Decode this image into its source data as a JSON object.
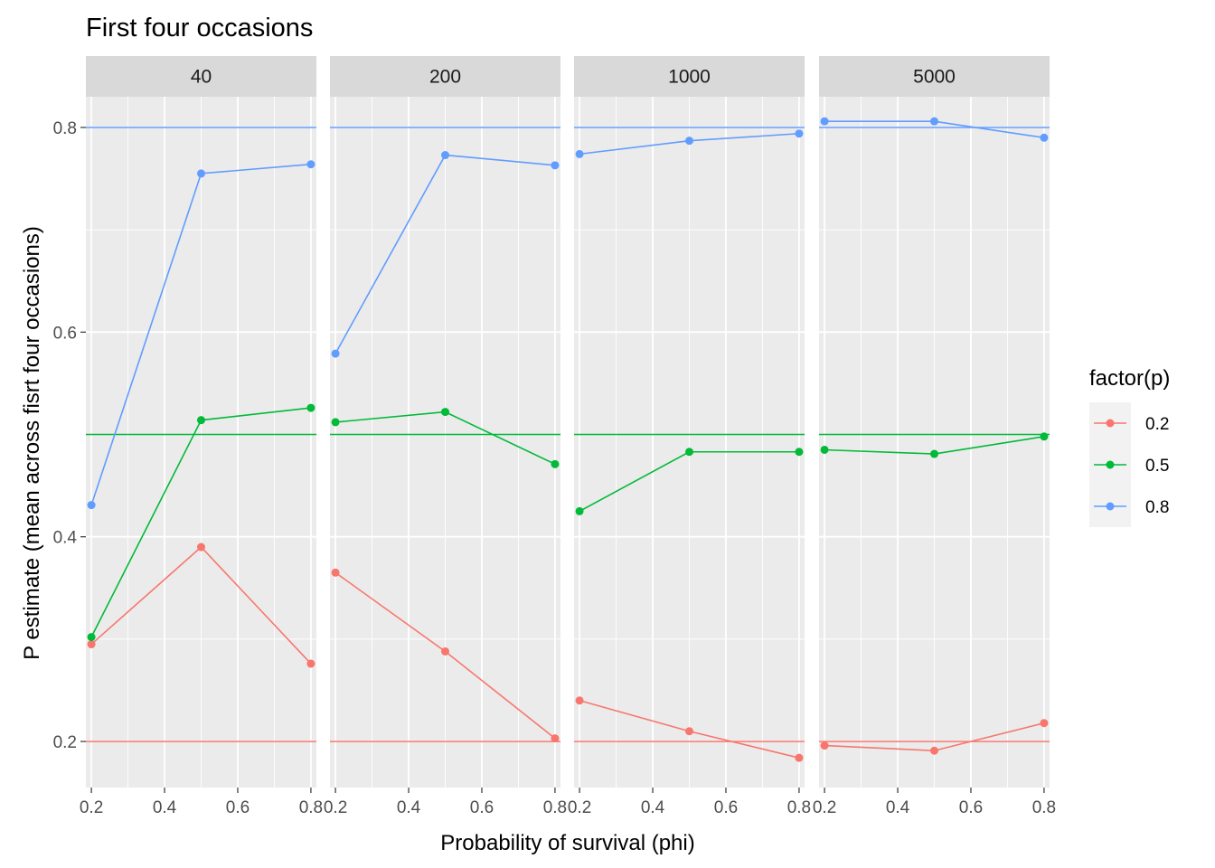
{
  "chart_data": {
    "type": "line",
    "title": "First four occasions",
    "xlabel": "Probability of survival (phi)",
    "ylabel": "P estimate (mean across fisrt four occasions)",
    "x": [
      0.2,
      0.5,
      0.8
    ],
    "xticks": [
      0.2,
      0.4,
      0.6,
      0.8
    ],
    "xtick_labels": [
      "0.2",
      "0.4",
      "0.6",
      "0.8"
    ],
    "yticks": [
      0.2,
      0.4,
      0.6,
      0.8
    ],
    "ytick_labels": [
      "0.2",
      "0.4",
      "0.6",
      "0.8"
    ],
    "xlim": [
      0.185,
      0.815
    ],
    "ylim": [
      0.155,
      0.83
    ],
    "legend_title": "factor(p)",
    "legend_position": "right",
    "series_colors": {
      "0.2": "#F8766D",
      "0.5": "#00BA38",
      "0.8": "#619CFF"
    },
    "reference_lines": [
      {
        "value": 0.2,
        "color": "#F8766D"
      },
      {
        "value": 0.5,
        "color": "#00BA38"
      },
      {
        "value": 0.8,
        "color": "#619CFF"
      }
    ],
    "facets": [
      {
        "label": "40",
        "series": [
          {
            "name": "0.2",
            "values": [
              0.295,
              0.39,
              0.276
            ]
          },
          {
            "name": "0.5",
            "values": [
              0.302,
              0.514,
              0.526
            ]
          },
          {
            "name": "0.8",
            "values": [
              0.431,
              0.755,
              0.764
            ]
          }
        ]
      },
      {
        "label": "200",
        "series": [
          {
            "name": "0.2",
            "values": [
              0.365,
              0.288,
              0.203
            ]
          },
          {
            "name": "0.5",
            "values": [
              0.512,
              0.522,
              0.471
            ]
          },
          {
            "name": "0.8",
            "values": [
              0.579,
              0.773,
              0.763
            ]
          }
        ]
      },
      {
        "label": "1000",
        "series": [
          {
            "name": "0.2",
            "values": [
              0.24,
              0.21,
              0.184
            ]
          },
          {
            "name": "0.5",
            "values": [
              0.425,
              0.483,
              0.483
            ]
          },
          {
            "name": "0.8",
            "values": [
              0.774,
              0.787,
              0.794
            ]
          }
        ]
      },
      {
        "label": "5000",
        "series": [
          {
            "name": "0.2",
            "values": [
              0.196,
              0.191,
              0.218
            ]
          },
          {
            "name": "0.5",
            "values": [
              0.485,
              0.481,
              0.498
            ]
          },
          {
            "name": "0.8",
            "values": [
              0.806,
              0.806,
              0.79
            ]
          }
        ]
      }
    ]
  }
}
